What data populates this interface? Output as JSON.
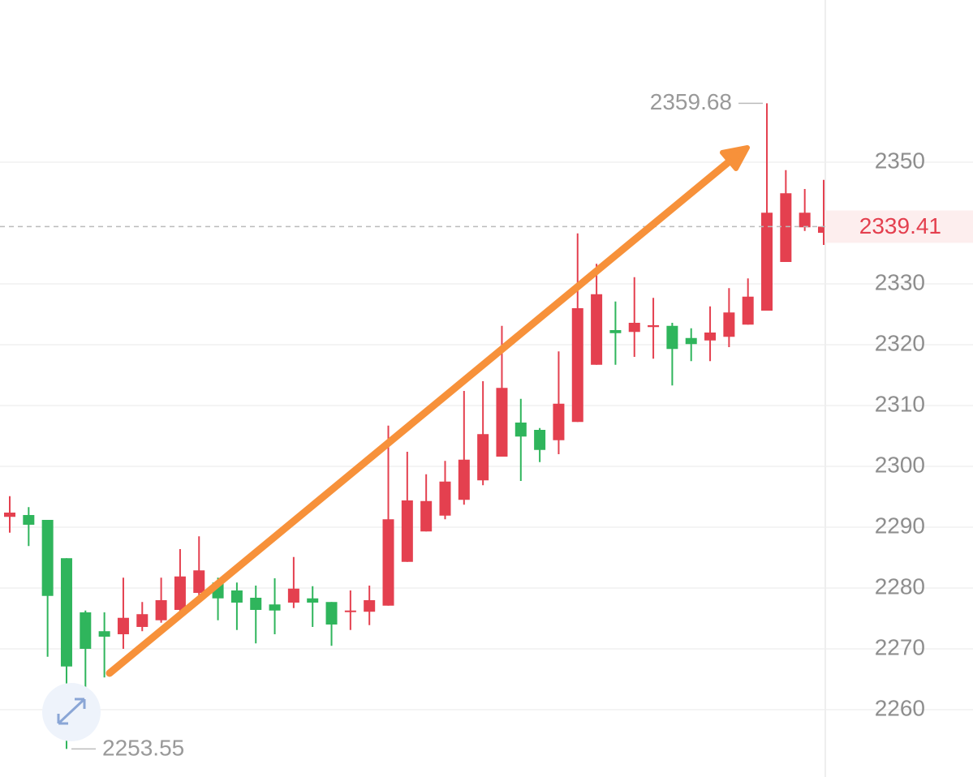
{
  "chart_data": {
    "type": "candlestick",
    "categories": [
      null,
      null,
      null,
      null,
      null,
      null,
      null,
      null,
      null,
      null,
      null,
      null,
      null,
      null,
      null,
      null,
      null,
      null,
      null,
      null,
      null,
      null,
      null,
      null,
      null,
      null,
      null,
      null,
      null,
      null,
      null,
      null,
      null,
      null,
      null,
      null,
      null,
      null,
      null,
      null,
      null,
      null,
      null,
      null
    ],
    "open": [
      2291.7,
      2292.0,
      2291.2,
      2284.9,
      2276.0,
      2272.9,
      2272.4,
      2273.6,
      2274.7,
      2276.4,
      2279.2,
      2280.9,
      2279.6,
      2278.4,
      2277.3,
      2277.6,
      2278.3,
      2277.7,
      2276.1,
      2276.1,
      2277.1,
      2284.3,
      2289.3,
      2291.9,
      2294.5,
      2297.7,
      2301.6,
      2307.2,
      2306.0,
      2304.3,
      2307.3,
      2316.7,
      2322.4,
      2322.1,
      2322.9,
      2323.1,
      2321.1,
      2320.7,
      2321.3,
      2323.3,
      2325.6,
      2333.6,
      2339.3,
      2338.4
    ],
    "high": [
      2295.1,
      2293.3,
      2291.2,
      2284.9,
      2276.3,
      2276.0,
      2281.7,
      2277.7,
      2281.7,
      2286.4,
      2288.5,
      2281.7,
      2280.9,
      2280.4,
      2281.6,
      2285.1,
      2280.3,
      2277.7,
      2279.6,
      2280.4,
      2306.7,
      2302.4,
      2298.7,
      2300.9,
      2312.4,
      2314.0,
      2323.1,
      2311.1,
      2306.3,
      2318.9,
      2338.3,
      2333.3,
      2327.1,
      2331.1,
      2327.7,
      2323.6,
      2322.7,
      2326.3,
      2329.3,
      2330.9,
      2359.68,
      2348.7,
      2345.6,
      2347.1
    ],
    "low": [
      2289.1,
      2286.9,
      2268.7,
      2253.55,
      2262.0,
      2265.3,
      2270.0,
      2272.9,
      2274.3,
      2275.7,
      2278.0,
      2274.7,
      2273.1,
      2270.9,
      2272.4,
      2276.7,
      2273.6,
      2270.5,
      2273.1,
      2273.9,
      2277.1,
      2284.3,
      2289.3,
      2291.3,
      2293.7,
      2296.9,
      2301.6,
      2297.6,
      2300.7,
      2302.0,
      2307.3,
      2316.7,
      2316.7,
      2318.0,
      2317.7,
      2313.3,
      2317.3,
      2317.3,
      2319.6,
      2323.3,
      2325.6,
      2333.6,
      2338.7,
      2336.4
    ],
    "close": [
      2292.4,
      2290.4,
      2278.7,
      2267.1,
      2270.0,
      2272.0,
      2275.1,
      2275.7,
      2278.0,
      2281.9,
      2282.9,
      2278.3,
      2277.6,
      2276.4,
      2276.3,
      2279.9,
      2277.6,
      2274.0,
      2276.3,
      2278.0,
      2291.3,
      2294.4,
      2294.3,
      2297.5,
      2301.1,
      2305.3,
      2312.9,
      2304.9,
      2302.7,
      2310.3,
      2326.0,
      2328.3,
      2321.9,
      2323.6,
      2323.2,
      2319.3,
      2320.1,
      2322.0,
      2325.3,
      2327.9,
      2341.7,
      2344.9,
      2341.7,
      2339.41
    ],
    "up_color": "#e4404f",
    "down_color": "#2fb55c",
    "ylim": [
      2248.93,
      2376.67
    ],
    "yticks": [
      2260,
      2270,
      2280,
      2290,
      2300,
      2310,
      2320,
      2330,
      2350
    ],
    "grid": true,
    "high_label": 2359.68,
    "low_label": 2253.55,
    "last_price": 2339.41
  }
}
